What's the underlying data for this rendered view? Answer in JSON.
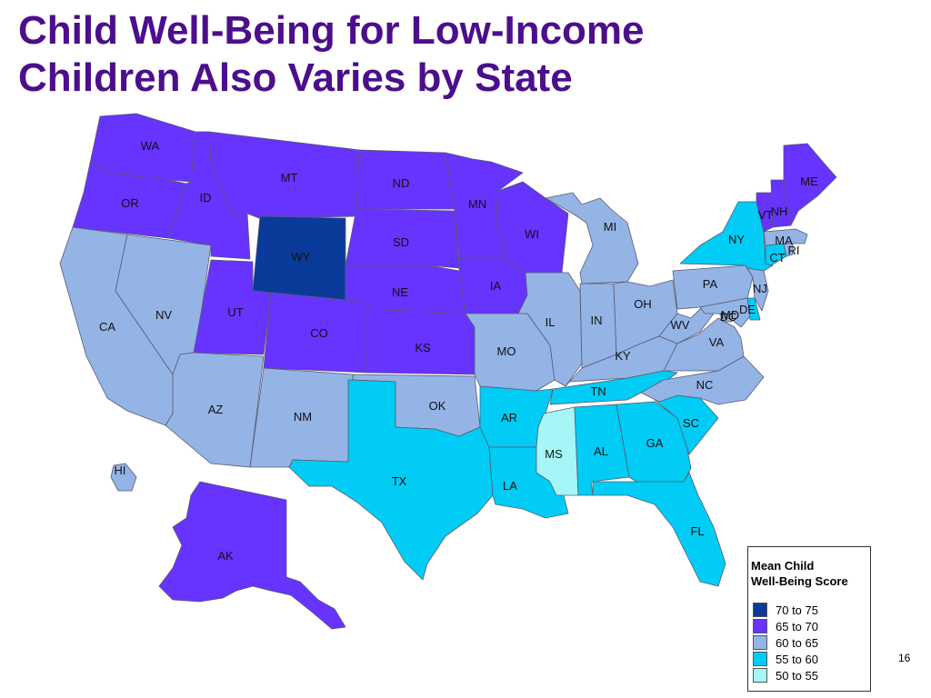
{
  "title": {
    "line1": "Child Well-Being for Low-Income",
    "line2": "Children Also Varies by State"
  },
  "legend": {
    "title_line1": "Mean Child",
    "title_line2": "Well-Being Score",
    "bins": [
      {
        "label": "70 to 75",
        "color": "#0a3a9a"
      },
      {
        "label": "65 to 70",
        "color": "#6633ff"
      },
      {
        "label": "60 to 65",
        "color": "#94b4e6"
      },
      {
        "label": "55 to 60",
        "color": "#00ccf5"
      },
      {
        "label": "50 to 55",
        "color": "#a5f7f7"
      }
    ]
  },
  "page_number": "16",
  "states": {
    "WA": {
      "label": "WA",
      "bin": 1
    },
    "OR": {
      "label": "OR",
      "bin": 1
    },
    "ID": {
      "label": "ID",
      "bin": 1
    },
    "MT": {
      "label": "MT",
      "bin": 1
    },
    "ND": {
      "label": "ND",
      "bin": 1
    },
    "SD": {
      "label": "SD",
      "bin": 1
    },
    "NE": {
      "label": "NE",
      "bin": 1
    },
    "KS": {
      "label": "KS",
      "bin": 1
    },
    "MN": {
      "label": "MN",
      "bin": 1
    },
    "IA": {
      "label": "IA",
      "bin": 1
    },
    "WI": {
      "label": "WI",
      "bin": 1
    },
    "UT": {
      "label": "UT",
      "bin": 1
    },
    "CO": {
      "label": "CO",
      "bin": 1
    },
    "AK": {
      "label": "AK",
      "bin": 1
    },
    "VT": {
      "label": "VT",
      "bin": 1
    },
    "NH": {
      "label": "NH",
      "bin": 1
    },
    "ME": {
      "label": "ME",
      "bin": 1
    },
    "WY": {
      "label": "WY",
      "bin": 0
    },
    "CA": {
      "label": "CA",
      "bin": 2
    },
    "NV": {
      "label": "NV",
      "bin": 2
    },
    "AZ": {
      "label": "AZ",
      "bin": 2
    },
    "NM": {
      "label": "NM",
      "bin": 2
    },
    "OK": {
      "label": "OK",
      "bin": 2
    },
    "MO": {
      "label": "MO",
      "bin": 2
    },
    "IL": {
      "label": "IL",
      "bin": 2
    },
    "IN": {
      "label": "IN",
      "bin": 2
    },
    "OH": {
      "label": "OH",
      "bin": 2
    },
    "MI": {
      "label": "MI",
      "bin": 2
    },
    "KY": {
      "label": "KY",
      "bin": 2
    },
    "WV": {
      "label": "WV",
      "bin": 2
    },
    "VA": {
      "label": "VA",
      "bin": 2
    },
    "NC": {
      "label": "NC",
      "bin": 2
    },
    "PA": {
      "label": "PA",
      "bin": 2
    },
    "MA": {
      "label": "MA",
      "bin": 2
    },
    "RI": {
      "label": "RI",
      "bin": 2
    },
    "NJ": {
      "label": "NJ",
      "bin": 2
    },
    "MD": {
      "label": "MD",
      "bin": 2
    },
    "DC": {
      "label": "DC",
      "bin": 2
    },
    "HI": {
      "label": "HI",
      "bin": 2
    },
    "TX": {
      "label": "TX",
      "bin": 3
    },
    "AR": {
      "label": "AR",
      "bin": 3
    },
    "LA": {
      "label": "LA",
      "bin": 3
    },
    "TN": {
      "label": "TN",
      "bin": 3
    },
    "AL": {
      "label": "AL",
      "bin": 3
    },
    "GA": {
      "label": "GA",
      "bin": 3
    },
    "FL": {
      "label": "FL",
      "bin": 3
    },
    "SC": {
      "label": "SC",
      "bin": 3
    },
    "NY": {
      "label": "NY",
      "bin": 3
    },
    "CT": {
      "label": "CT",
      "bin": 3
    },
    "DE": {
      "label": "DE",
      "bin": 3
    },
    "MS": {
      "label": "MS",
      "bin": 4
    }
  }
}
